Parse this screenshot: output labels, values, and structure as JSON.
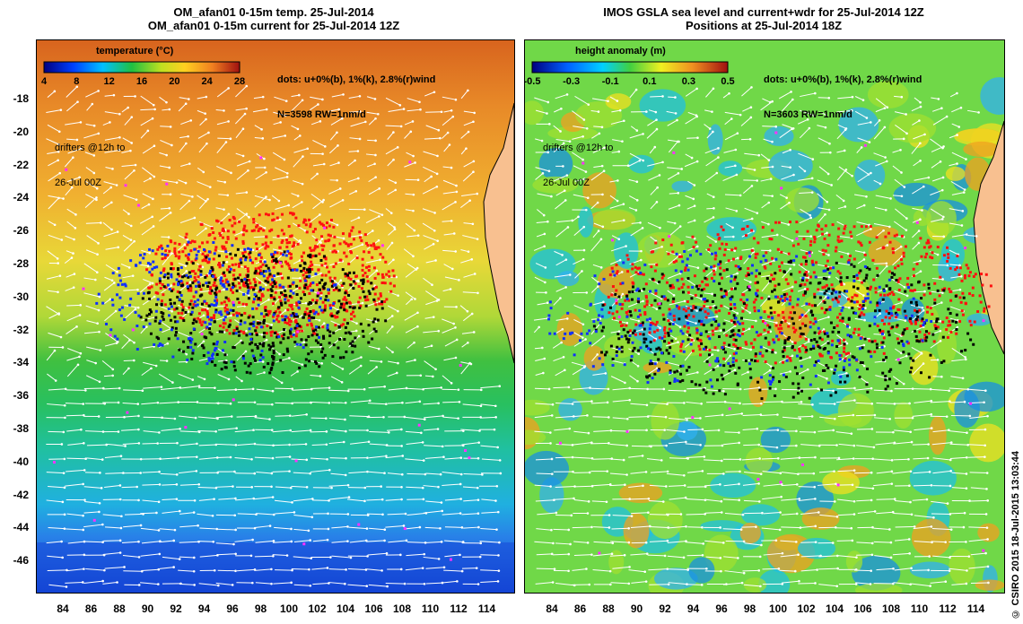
{
  "left": {
    "title_line1": "OM_afan01 0-15m temp. 25-Jul-2014",
    "title_line2": "OM_afan01 0-15m current for 25-Jul-2014 12Z",
    "colorbar_title": "temperature (°C)",
    "colorbar_ticks": [
      "4",
      "8",
      "12",
      "16",
      "20",
      "24",
      "28"
    ],
    "dots_line1": "dots: u+0%(b), 1%(k), 2.8%(r)wind",
    "dots_line2": "N=3598 RW=1nm/d",
    "drifters_line1": "drifters @12h to",
    "drifters_line2": "26-Jul 00Z"
  },
  "right": {
    "title_line1": "IMOS GSLA sea level and current+wdr for 25-Jul-2014 12Z",
    "title_line2": "Positions at 25-Jul-2014 18Z",
    "colorbar_title": "height anomaly (m)",
    "colorbar_ticks": [
      "-0.5",
      "-0.3",
      "-0.1",
      "0.1",
      "0.3",
      "0.5"
    ],
    "dots_line1": "dots: u+0%(b), 1%(k), 2.8%(r)wind",
    "dots_line2": "N=3603 RW=1nm/d",
    "drifters_line1": "drifters @12h to",
    "drifters_line2": "26-Jul 00Z"
  },
  "lat_labels": [
    "-18",
    "-20",
    "-22",
    "-24",
    "-26",
    "-28",
    "-30",
    "-32",
    "-34",
    "-36",
    "-38",
    "-40",
    "-42",
    "-44",
    "-46"
  ],
  "lon_labels": [
    "84",
    "86",
    "88",
    "90",
    "92",
    "94",
    "96",
    "98",
    "100",
    "102",
    "104",
    "106",
    "108",
    "110",
    "112",
    "114"
  ],
  "credit": "© CSIRO 2015   18-Jul-2015 13:03:44",
  "colors": {
    "dot_blue": "#1030ff",
    "dot_black": "#000000",
    "dot_red": "#ff1010",
    "dot_magenta": "#ff30ff",
    "arrow": "#ffffff",
    "land": "#f8c090"
  }
}
